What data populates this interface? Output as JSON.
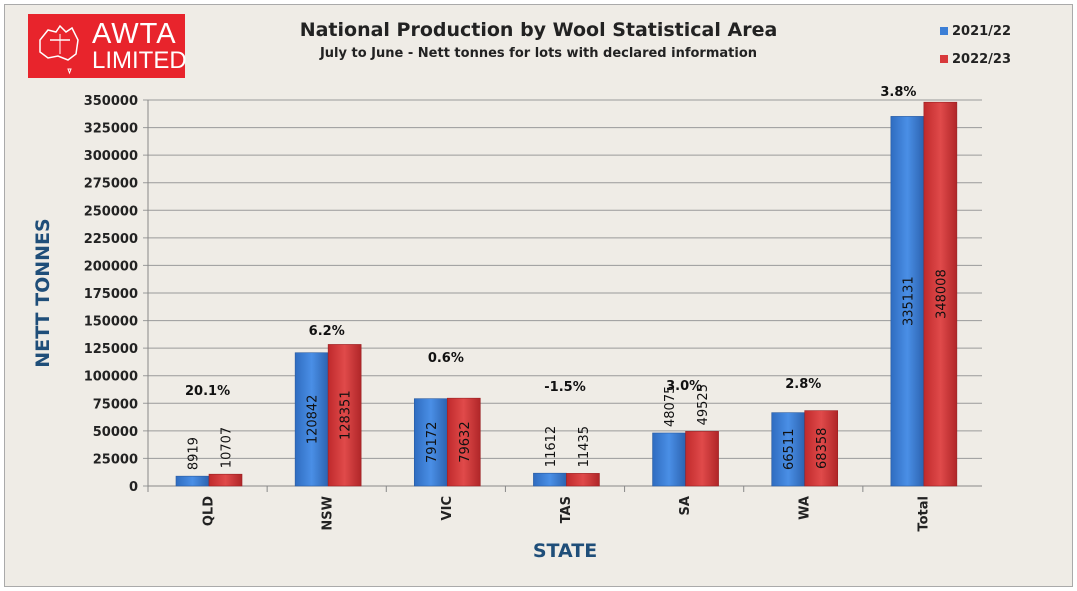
{
  "logo": {
    "line1": "AWTA",
    "line2": "LIMITED"
  },
  "colors": {
    "series1": "#3c7fd6",
    "series2": "#d8393b",
    "background": "#efece6",
    "axis_title": "#1f4e79"
  },
  "chart_data": {
    "type": "bar",
    "title": "National Production by Wool Statistical Area",
    "subtitle": "July to June - Nett tonnes for lots with declared information",
    "xlabel": "STATE",
    "ylabel": "NETT TONNES",
    "ylim": [
      0,
      350000
    ],
    "yticks": [
      0,
      25000,
      50000,
      75000,
      100000,
      125000,
      150000,
      175000,
      200000,
      225000,
      250000,
      275000,
      300000,
      325000,
      350000
    ],
    "grid": true,
    "legend": "top-right",
    "categories": [
      "QLD",
      "NSW",
      "VIC",
      "TAS",
      "SA",
      "WA",
      "Total"
    ],
    "series": [
      {
        "name": "2021/22",
        "values": [
          8919,
          120842,
          79172,
          11612,
          48075,
          66511,
          335131
        ]
      },
      {
        "name": "2022/23",
        "values": [
          10707,
          128351,
          79632,
          11435,
          49525,
          68358,
          348008
        ]
      }
    ],
    "change_labels": [
      "20.1%",
      "6.2%",
      "0.6%",
      "-1.5%",
      "3.0%",
      "2.8%",
      "3.8%"
    ]
  }
}
